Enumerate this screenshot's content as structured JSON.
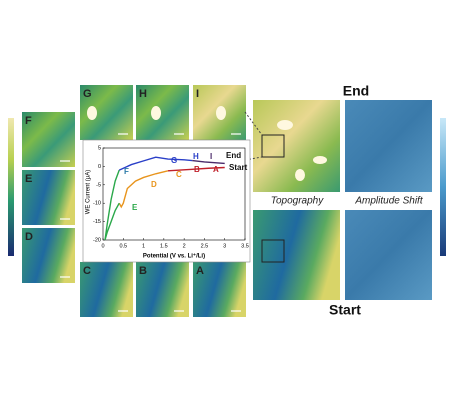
{
  "chart_data": {
    "type": "line",
    "xlabel": "Potential (V vs. Li⁺/Li)",
    "ylabel": "WE Current (μA)",
    "xlim": [
      0,
      3.5
    ],
    "xticks": [
      0,
      0.5,
      1,
      1.5,
      2,
      2.5,
      3,
      3.5
    ],
    "ylim": [
      -20,
      5
    ],
    "yticks": [
      -20,
      -15,
      -10,
      -5,
      0,
      5
    ],
    "series": [
      {
        "color": "#c0202a",
        "x": [
          3.0,
          2.6,
          2.2,
          1.9,
          1.6
        ],
        "values": [
          -0.3,
          -0.5,
          -0.8,
          -1.0,
          -1.2
        ]
      },
      {
        "color": "#e8941c",
        "x": [
          1.6,
          1.3,
          1.0,
          0.8,
          0.6,
          0.5,
          0.45,
          0.4
        ],
        "values": [
          -1.2,
          -2,
          -3,
          -4,
          -6,
          -10,
          -11,
          -10
        ]
      },
      {
        "color": "#2aa84a",
        "x": [
          0.4,
          0.3,
          0.2,
          0.1,
          0.05,
          0.1,
          0.2,
          0.3,
          0.4
        ],
        "values": [
          -10,
          -12,
          -15,
          -18,
          -20,
          -16,
          -9,
          -4,
          -1
        ]
      },
      {
        "color": "#2a3fc8",
        "x": [
          0.4,
          0.7,
          1.0,
          1.3,
          1.6,
          2.0,
          2.2
        ],
        "values": [
          -1,
          0.5,
          1.5,
          2.5,
          2.0,
          1.8,
          1.6
        ]
      },
      {
        "color": "#4a2a6a",
        "x": [
          2.2,
          2.5,
          3.0
        ],
        "values": [
          1.6,
          1.2,
          0.8
        ]
      }
    ],
    "annotations": [
      {
        "text": "A",
        "color": "#c0202a"
      },
      {
        "text": "B",
        "color": "#c0202a"
      },
      {
        "text": "C",
        "color": "#e8941c"
      },
      {
        "text": "D",
        "color": "#e8941c"
      },
      {
        "text": "E",
        "color": "#2aa84a"
      },
      {
        "text": "F",
        "color": "#2a7aa8"
      },
      {
        "text": "G",
        "color": "#2a3fc8"
      },
      {
        "text": "H",
        "color": "#2a3fc8"
      },
      {
        "text": "I",
        "color": "#4a2a6a"
      },
      {
        "text": "End",
        "color": "#111"
      },
      {
        "text": "Start",
        "color": "#111"
      }
    ]
  },
  "panels": {
    "left": [
      "F",
      "E",
      "D"
    ],
    "top": [
      "G",
      "H",
      "I"
    ],
    "bottom": [
      "C",
      "B",
      "A"
    ]
  },
  "large": {
    "end": "End",
    "start": "Start",
    "topography": "Topography",
    "amplitude": "Amplitude Shift"
  }
}
